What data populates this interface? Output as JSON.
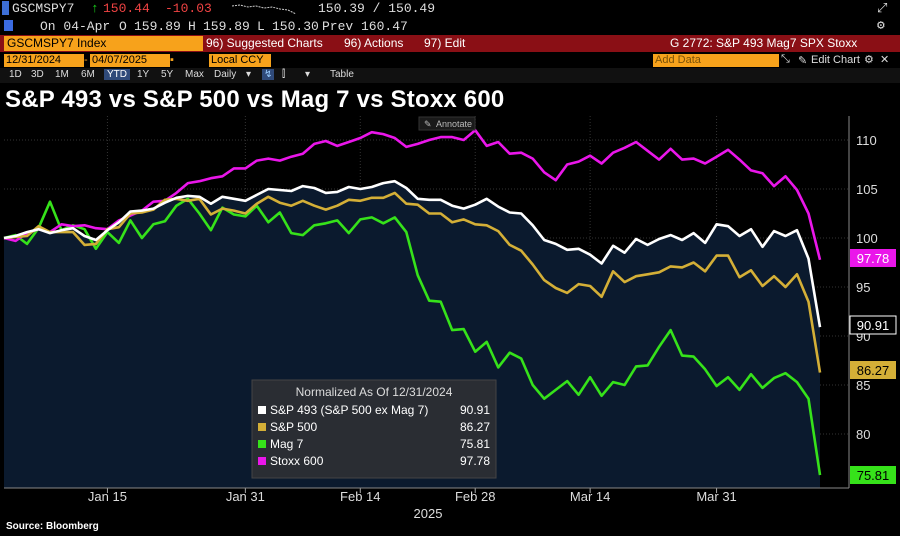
{
  "header": {
    "ticker": "GSCMSPY7",
    "last": "150.44",
    "change": "-10.03",
    "bid_ask": "150.39 / 150.49",
    "on_date": "On 04-Apr",
    "open_label": "O",
    "open": "159.89",
    "high_label": "H",
    "high": "159.89",
    "low_label": "L",
    "low": "150.30",
    "prev_label": "Prev",
    "prev": "160.47"
  },
  "menubar": {
    "index_label": "GSCMSPY7 Index",
    "suggested": "96) Suggested Charts",
    "actions": "96) Actions",
    "edit": "97) Edit",
    "page_title": "G 2772: S&P 493 Mag7 SPX Stoxx"
  },
  "datebar": {
    "start": "12/31/2024",
    "end": "04/07/2025",
    "currency": "Local CCY",
    "add_data_placeholder": "Add Data",
    "edit_chart": "Edit Chart"
  },
  "toolbar": {
    "ranges": [
      "1D",
      "3D",
      "1M",
      "6M",
      "YTD",
      "1Y",
      "5Y",
      "Max"
    ],
    "active_range": "YTD",
    "frequency": "Daily",
    "table": "Table"
  },
  "title": "S&P 493 vs S&P 500 vs Mag 7 vs Stoxx 600",
  "annotate_label": "Annotate",
  "source": "Source: Bloomberg",
  "colors": {
    "sp493": "#ffffff",
    "sp500": "#d4af37",
    "mag7": "#36e21a",
    "stoxx": "#ea16ea",
    "area": "#0b1a2e",
    "orange": "#f7a21b",
    "menu_red": "#8a0f15"
  },
  "chart_data": {
    "type": "line",
    "title": "S&P 493 vs S&P 500 vs Mag 7 vs Stoxx 600",
    "xlabel": "2025",
    "ylabel": "",
    "ylim": [
      75,
      112
    ],
    "x_ticks": [
      "Jan 15",
      "Jan 31",
      "Feb 14",
      "Feb 28",
      "Mar 14",
      "Mar 31"
    ],
    "x_tick_index": [
      9,
      21,
      31,
      41,
      51,
      62
    ],
    "y_ticks": [
      80,
      85,
      90,
      95,
      100,
      105,
      110
    ],
    "legend_title": "Normalized As Of 12/31/2024",
    "series": [
      {
        "name": "S&P 493 (S&P 500 ex Mag 7)",
        "last": "90.91",
        "values": [
          100,
          100.2,
          100.6,
          100.9,
          100.5,
          100.8,
          101.0,
          100.2,
          99.8,
          100.8,
          101.6,
          102.7,
          102.8,
          103.0,
          103.6,
          104.1,
          104.3,
          104.2,
          103.5,
          104.2,
          104.0,
          103.8,
          104.4,
          105.0,
          104.9,
          104.8,
          105.3,
          105.1,
          104.6,
          104.7,
          105.2,
          105.0,
          105.2,
          105.6,
          105.8,
          105.1,
          104.0,
          103.9,
          103.9,
          103.3,
          103.0,
          103.4,
          104.0,
          103.2,
          102.6,
          102.5,
          101.3,
          99.8,
          99.4,
          98.8,
          98.9,
          98.3,
          97.4,
          99.2,
          98.5,
          99.9,
          99.3,
          99.9,
          100.3,
          99.8,
          100.5,
          99.5,
          101.4,
          101.2,
          100.2,
          100.9,
          99.1,
          100.7,
          100.2,
          100.8,
          97.9,
          90.91
        ]
      },
      {
        "name": "S&P 500",
        "last": "86.27",
        "values": [
          100,
          100.1,
          100.2,
          101.2,
          100.6,
          100.6,
          100.6,
          99.3,
          99.4,
          100.9,
          101.1,
          102.5,
          102.6,
          102.9,
          103.9,
          104.0,
          103.8,
          104.0,
          102.4,
          103.0,
          102.8,
          102.5,
          103.5,
          104.2,
          103.6,
          103.3,
          103.8,
          103.3,
          102.9,
          103.3,
          103.9,
          103.8,
          104.1,
          104.1,
          104.6,
          103.5,
          103.4,
          102.5,
          102.5,
          101.6,
          101.9,
          101.4,
          101.3,
          100.7,
          99.3,
          98.7,
          97.3,
          95.7,
          94.9,
          94.4,
          95.3,
          95.1,
          94.0,
          96.6,
          95.5,
          96.1,
          96.3,
          96.5,
          97.1,
          97.0,
          97.5,
          96.6,
          98.2,
          98.2,
          96.0,
          96.7,
          95.1,
          96.1,
          95.0,
          96.3,
          93.5,
          86.27
        ]
      },
      {
        "name": "Mag 7",
        "last": "75.81",
        "values": [
          100,
          100.3,
          99.4,
          101.0,
          103.7,
          100.8,
          101.3,
          100.9,
          98.9,
          100.6,
          99.5,
          101.8,
          100.0,
          101.4,
          101.7,
          103.3,
          104.0,
          102.5,
          100.8,
          103.1,
          102.4,
          102.2,
          103.3,
          101.6,
          102.6,
          100.5,
          100.3,
          101.3,
          101.5,
          101.8,
          100.5,
          101.9,
          102.1,
          101.5,
          102.1,
          100.6,
          96.2,
          93.6,
          93.5,
          90.6,
          90.7,
          88.4,
          89.4,
          86.8,
          88.3,
          87.7,
          85.0,
          83.6,
          84.5,
          85.4,
          84.0,
          85.8,
          83.9,
          85.3,
          85.0,
          86.9,
          87.0,
          88.9,
          90.6,
          88.0,
          87.9,
          86.6,
          84.9,
          85.8,
          84.5,
          86.1,
          84.7,
          85.7,
          86.2,
          85.3,
          83.6,
          75.81
        ]
      },
      {
        "name": "Stoxx 600",
        "last": "97.78",
        "values": [
          100,
          99.7,
          100.5,
          100.9,
          100.6,
          101.4,
          101.2,
          101.3,
          101.0,
          100.9,
          101.8,
          102.3,
          102.8,
          103.7,
          103.8,
          104.6,
          105.6,
          105.8,
          106.1,
          106.3,
          107.1,
          107.1,
          107.9,
          108.1,
          107.9,
          108.3,
          108.6,
          109.6,
          109.9,
          109.4,
          109.8,
          110.2,
          110.8,
          110.6,
          110.2,
          109.3,
          109.6,
          110.0,
          110.3,
          110.3,
          110.0,
          111.0,
          109.4,
          109.8,
          108.6,
          108.7,
          108.1,
          106.7,
          105.9,
          107.5,
          107.8,
          108.4,
          107.6,
          108.7,
          109.2,
          109.8,
          108.9,
          108.0,
          109.1,
          108.0,
          108.1,
          107.6,
          108.3,
          109.0,
          108.0,
          106.9,
          106.6,
          105.3,
          106.3,
          104.9,
          102.5,
          97.78
        ]
      }
    ]
  }
}
